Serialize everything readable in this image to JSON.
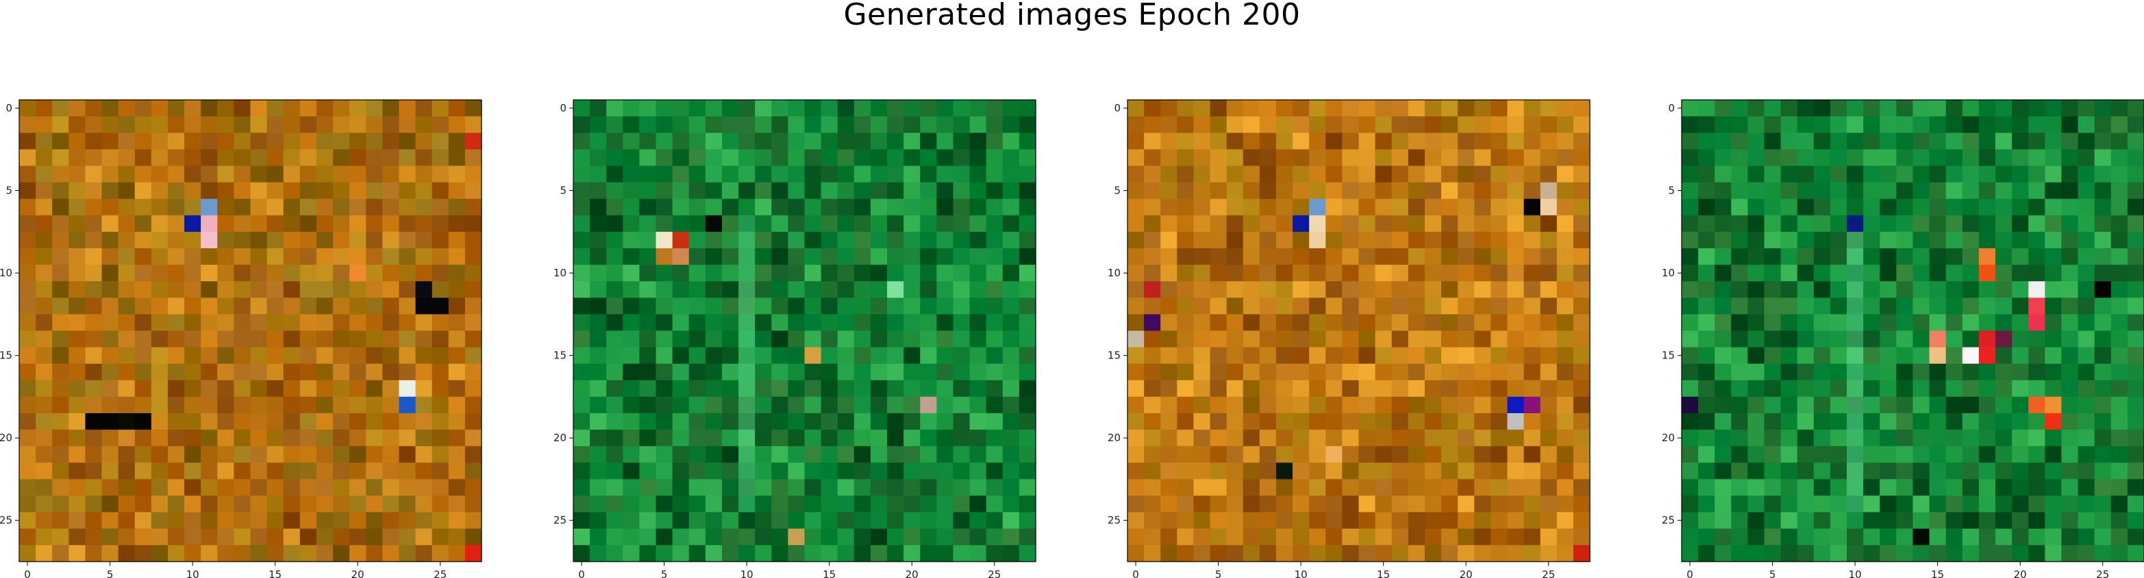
{
  "figure": {
    "title": "Generated images Epoch 200"
  },
  "chart_data": [
    {
      "type": "heatmap",
      "title": "",
      "rows": 28,
      "cols": 28,
      "xticks": [
        0,
        5,
        10,
        15,
        20,
        25
      ],
      "yticks": [
        0,
        5,
        10,
        15,
        20,
        25
      ],
      "xlim": [
        -0.5,
        27.5
      ],
      "ylim": [
        27.5,
        -0.5
      ],
      "palette": [
        "#b46a10",
        "#a8780c",
        "#c0700a",
        "#9a5a12",
        "#8c6a10",
        "#c88418"
      ],
      "seed": 11,
      "specials": [
        {
          "r": 7,
          "c": 10,
          "color": "#0a1aa0"
        },
        {
          "r": 6,
          "c": 11,
          "color": "#6a9ad0"
        },
        {
          "r": 7,
          "c": 11,
          "color": "#f0b0c0"
        },
        {
          "r": 8,
          "c": 11,
          "color": "#f4c0c8"
        },
        {
          "r": 12,
          "c": 24,
          "color": "#05050a"
        },
        {
          "r": 12,
          "c": 25,
          "color": "#05050a"
        },
        {
          "r": 11,
          "c": 24,
          "color": "#0a0a15"
        },
        {
          "r": 17,
          "c": 23,
          "color": "#e8f0e8"
        },
        {
          "r": 18,
          "c": 23,
          "color": "#1a5ac8"
        },
        {
          "r": 19,
          "c": 4,
          "color": "#050505"
        },
        {
          "r": 19,
          "c": 5,
          "color": "#050505"
        },
        {
          "r": 19,
          "c": 6,
          "color": "#0a0a05"
        },
        {
          "r": 19,
          "c": 7,
          "color": "#050505"
        },
        {
          "r": 10,
          "c": 20,
          "color": "#f08a30"
        },
        {
          "r": 27,
          "c": 27,
          "color": "#e02010"
        },
        {
          "r": 2,
          "c": 27,
          "color": "#d02a10"
        }
      ]
    },
    {
      "type": "heatmap",
      "title": "",
      "rows": 28,
      "cols": 28,
      "xticks": [
        0,
        5,
        10,
        15,
        20,
        25
      ],
      "yticks": [
        0,
        5,
        10,
        15,
        20,
        25
      ],
      "xlim": [
        -0.5,
        27.5
      ],
      "ylim": [
        27.5,
        -0.5
      ],
      "palette": [
        "#0a7a30",
        "#12903a",
        "#1a6a2a",
        "#0c5a24",
        "#22a048",
        "#0a8a3c"
      ],
      "highlight_col": 10,
      "highlight_color": "#40c070",
      "seed": 23,
      "specials": [
        {
          "r": 8,
          "c": 5,
          "color": "#f0e8c8"
        },
        {
          "r": 8,
          "c": 6,
          "color": "#c83010"
        },
        {
          "r": 9,
          "c": 5,
          "color": "#c07820"
        },
        {
          "r": 9,
          "c": 6,
          "color": "#d08850"
        },
        {
          "r": 7,
          "c": 8,
          "color": "#050a05"
        },
        {
          "r": 15,
          "c": 14,
          "color": "#d8a040"
        },
        {
          "r": 18,
          "c": 21,
          "color": "#c0a090"
        },
        {
          "r": 26,
          "c": 13,
          "color": "#c8a050"
        },
        {
          "r": 11,
          "c": 19,
          "color": "#80e0a0"
        }
      ]
    },
    {
      "type": "heatmap",
      "title": "",
      "rows": 28,
      "cols": 28,
      "xticks": [
        0,
        5,
        10,
        15,
        20,
        25
      ],
      "yticks": [
        0,
        5,
        10,
        15,
        20,
        25
      ],
      "xlim": [
        -0.5,
        27.5
      ],
      "ylim": [
        27.5,
        -0.5
      ],
      "palette": [
        "#b46a10",
        "#a8780c",
        "#c0700a",
        "#9a5a12",
        "#d89020",
        "#c88418"
      ],
      "seed": 37,
      "specials": [
        {
          "r": 7,
          "c": 10,
          "color": "#0a1aa0"
        },
        {
          "r": 6,
          "c": 11,
          "color": "#6a9ad0"
        },
        {
          "r": 7,
          "c": 11,
          "color": "#f0d8b0"
        },
        {
          "r": 8,
          "c": 11,
          "color": "#f0d0a0"
        },
        {
          "r": 5,
          "c": 25,
          "color": "#c8b090"
        },
        {
          "r": 6,
          "c": 25,
          "color": "#f0d0a0"
        },
        {
          "r": 6,
          "c": 24,
          "color": "#050505"
        },
        {
          "r": 14,
          "c": 0,
          "color": "#c8b8a0"
        },
        {
          "r": 13,
          "c": 1,
          "color": "#400a60"
        },
        {
          "r": 18,
          "c": 23,
          "color": "#1018c0"
        },
        {
          "r": 19,
          "c": 23,
          "color": "#c0c0c0"
        },
        {
          "r": 18,
          "c": 24,
          "color": "#8a1080"
        },
        {
          "r": 22,
          "c": 9,
          "color": "#0a1a0a"
        },
        {
          "r": 21,
          "c": 12,
          "color": "#f0b060"
        },
        {
          "r": 11,
          "c": 1,
          "color": "#c02020"
        },
        {
          "r": 27,
          "c": 27,
          "color": "#d02010"
        }
      ]
    },
    {
      "type": "heatmap",
      "title": "",
      "rows": 28,
      "cols": 28,
      "xticks": [
        0,
        5,
        10,
        15,
        20,
        25
      ],
      "yticks": [
        0,
        5,
        10,
        15,
        20,
        25
      ],
      "xlim": [
        -0.5,
        27.5
      ],
      "ylim": [
        27.5,
        -0.5
      ],
      "palette": [
        "#0a7a30",
        "#12903a",
        "#1a6a2a",
        "#0c5a24",
        "#22a048",
        "#0a8a3c"
      ],
      "highlight_col": 10,
      "highlight_color": "#50c880",
      "seed": 51,
      "specials": [
        {
          "r": 7,
          "c": 10,
          "color": "#0a1a80"
        },
        {
          "r": 9,
          "c": 18,
          "color": "#f08030"
        },
        {
          "r": 10,
          "c": 18,
          "color": "#f05010"
        },
        {
          "r": 11,
          "c": 21,
          "color": "#f0f0f0"
        },
        {
          "r": 12,
          "c": 21,
          "color": "#f04050"
        },
        {
          "r": 13,
          "c": 21,
          "color": "#f03050"
        },
        {
          "r": 14,
          "c": 15,
          "color": "#f08060"
        },
        {
          "r": 15,
          "c": 15,
          "color": "#f0c080"
        },
        {
          "r": 14,
          "c": 18,
          "color": "#e02020"
        },
        {
          "r": 15,
          "c": 17,
          "color": "#f8f8f8"
        },
        {
          "r": 15,
          "c": 18,
          "color": "#f02020"
        },
        {
          "r": 14,
          "c": 19,
          "color": "#6a1a40"
        },
        {
          "r": 18,
          "c": 21,
          "color": "#f06020"
        },
        {
          "r": 19,
          "c": 22,
          "color": "#f03010"
        },
        {
          "r": 18,
          "c": 22,
          "color": "#f09030"
        },
        {
          "r": 11,
          "c": 25,
          "color": "#050505"
        },
        {
          "r": 26,
          "c": 14,
          "color": "#050a05"
        },
        {
          "r": 18,
          "c": 0,
          "color": "#1a0a40"
        }
      ]
    }
  ]
}
